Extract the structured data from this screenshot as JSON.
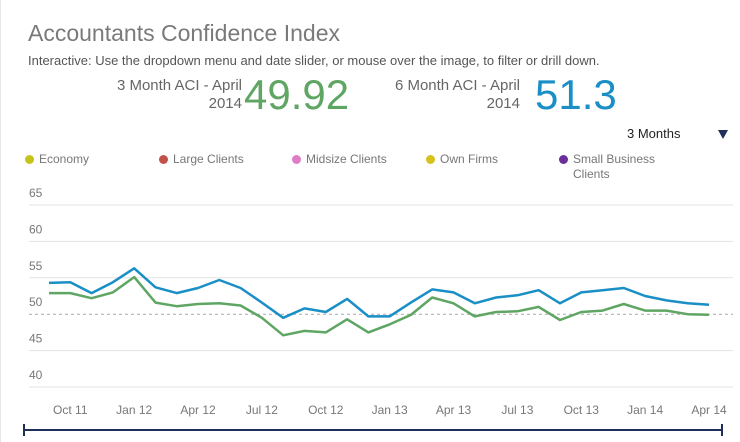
{
  "title": "Accountants Confidence Index",
  "subtitle": "Interactive: Use the dropdown menu and date slider, or mouse over the image, to filter or drill down.",
  "kpis": [
    {
      "label": "3 Month ACI - April 2014",
      "value": 49.92,
      "color": "#5fa563"
    },
    {
      "label": "6 Month ACI - April 2014",
      "value": 51.3,
      "color": "#1a8fc6"
    }
  ],
  "dropdown": "3 Months",
  "chart_data": {
    "type": "line",
    "legend": [
      {
        "name": "Economy",
        "color": "#c6c21c"
      },
      {
        "name": "Large Clients",
        "color": "#c2514a"
      },
      {
        "name": "Midsize Clients",
        "color": "#e07cc6"
      },
      {
        "name": "Own Firms",
        "color": "#d6c21c"
      },
      {
        "name": "Small Business Clients",
        "color": "#6b2f9c"
      }
    ],
    "categories": [
      null,
      "Oct 11",
      null,
      null,
      "Jan 12",
      null,
      null,
      "Apr 12",
      null,
      null,
      "Jul 12",
      null,
      null,
      "Oct 12",
      null,
      null,
      "Jan 13",
      null,
      null,
      "Apr 13",
      null,
      null,
      "Jul 13",
      null,
      null,
      "Oct 13",
      null,
      null,
      "Jan 14",
      null,
      null,
      "Apr 14"
    ],
    "series": [
      {
        "color": "#1a8fc6",
        "values": [
          54.3,
          54.4,
          52.9,
          54.4,
          56.3,
          53.7,
          52.9,
          53.6,
          54.7,
          53.6,
          51.6,
          49.5,
          50.8,
          50.3,
          52.1,
          49.7,
          49.7,
          51.6,
          53.4,
          53.0,
          51.5,
          52.3,
          52.6,
          53.3,
          51.5,
          53.0,
          53.3,
          53.6,
          52.5,
          51.9,
          51.5,
          51.3
        ]
      },
      {
        "color": "#5fa563",
        "values": [
          52.9,
          52.9,
          52.2,
          53.0,
          55.1,
          51.6,
          51.1,
          51.4,
          51.5,
          51.2,
          49.5,
          47.1,
          47.7,
          47.5,
          49.3,
          47.5,
          48.6,
          49.9,
          52.3,
          51.5,
          49.7,
          50.3,
          50.4,
          51.0,
          49.2,
          50.3,
          50.5,
          51.4,
          50.5,
          50.5,
          50.0,
          49.92
        ]
      }
    ],
    "ylim": [
      40,
      65
    ],
    "yticks": [
      40,
      45,
      50,
      55,
      60,
      65
    ],
    "reference_line": 50,
    "grid": true
  }
}
